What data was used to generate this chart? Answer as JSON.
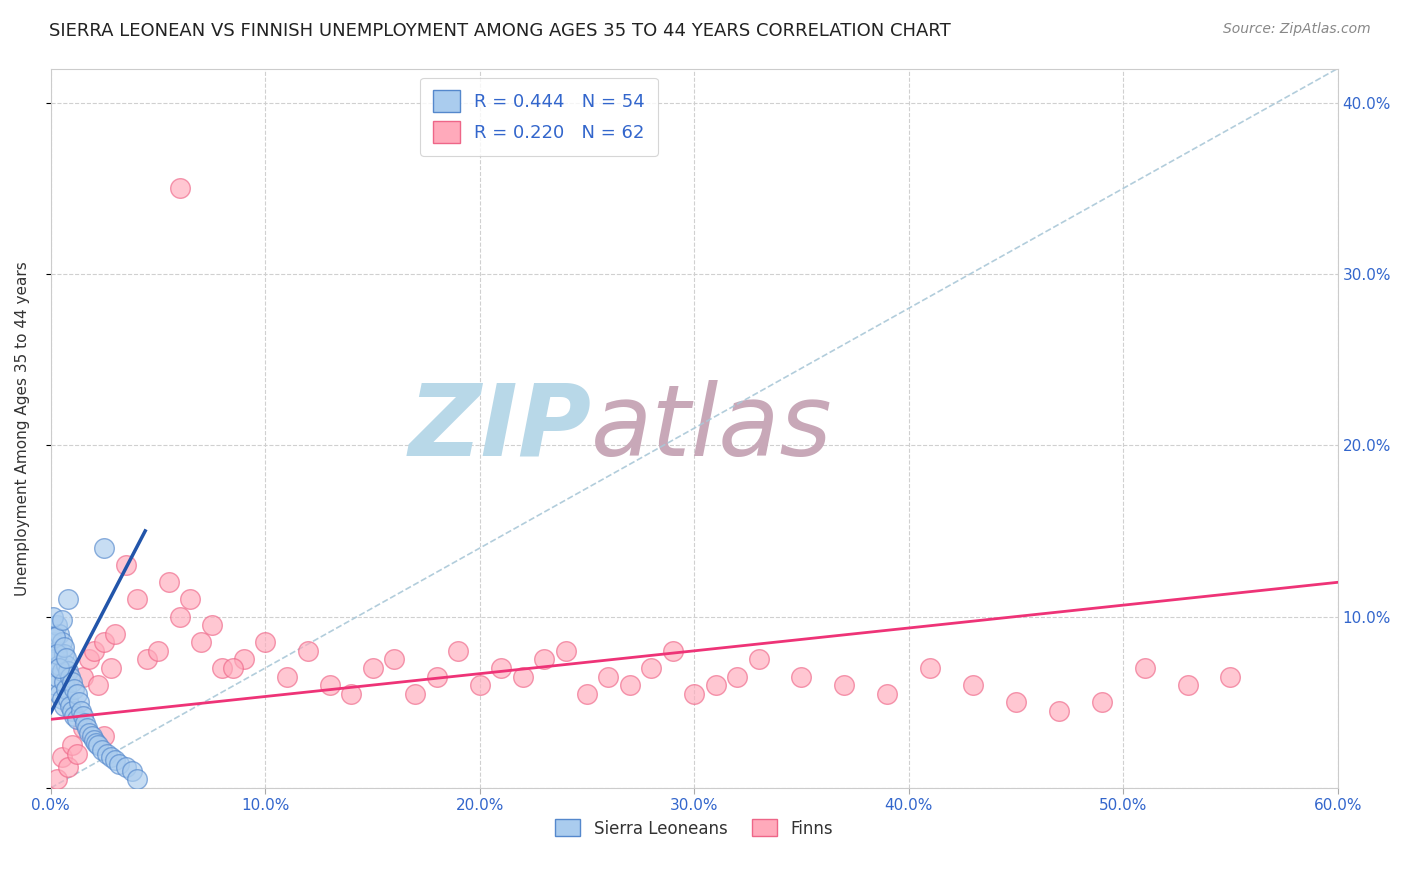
{
  "title": "SIERRA LEONEAN VS FINNISH UNEMPLOYMENT AMONG AGES 35 TO 44 YEARS CORRELATION CHART",
  "source": "Source: ZipAtlas.com",
  "ylabel": "Unemployment Among Ages 35 to 44 years",
  "xlim": [
    0.0,
    0.6
  ],
  "ylim": [
    0.0,
    0.42
  ],
  "xticks": [
    0.0,
    0.1,
    0.2,
    0.3,
    0.4,
    0.5,
    0.6
  ],
  "yticks": [
    0.0,
    0.1,
    0.2,
    0.3,
    0.4
  ],
  "background_color": "#ffffff",
  "grid_color": "#d0d0d0",
  "title_color": "#222222",
  "title_fontsize": 13,
  "watermark_zip": "ZIP",
  "watermark_atlas": "atlas",
  "watermark_color_zip": "#b8d8e8",
  "watermark_color_atlas": "#c8a8b8",
  "sl_color": "#5588cc",
  "sl_fill": "#aaccee",
  "fi_color": "#ee6688",
  "fi_fill": "#ffaabb",
  "sl_R": 0.444,
  "sl_N": 54,
  "fi_R": 0.22,
  "fi_N": 62,
  "legend_label_sl": "Sierra Leoneans",
  "legend_label_fi": "Finns",
  "sl_x": [
    0.001,
    0.002,
    0.002,
    0.003,
    0.003,
    0.003,
    0.004,
    0.004,
    0.004,
    0.005,
    0.005,
    0.005,
    0.006,
    0.006,
    0.006,
    0.007,
    0.007,
    0.008,
    0.008,
    0.009,
    0.009,
    0.01,
    0.01,
    0.011,
    0.011,
    0.012,
    0.012,
    0.013,
    0.014,
    0.015,
    0.016,
    0.017,
    0.018,
    0.019,
    0.02,
    0.021,
    0.022,
    0.024,
    0.026,
    0.028,
    0.03,
    0.032,
    0.035,
    0.038,
    0.001,
    0.002,
    0.003,
    0.004,
    0.005,
    0.006,
    0.007,
    0.008,
    0.025,
    0.04
  ],
  "sl_y": [
    0.085,
    0.075,
    0.06,
    0.095,
    0.08,
    0.065,
    0.09,
    0.072,
    0.055,
    0.085,
    0.068,
    0.052,
    0.078,
    0.062,
    0.048,
    0.072,
    0.058,
    0.068,
    0.052,
    0.065,
    0.048,
    0.062,
    0.045,
    0.058,
    0.042,
    0.055,
    0.04,
    0.05,
    0.045,
    0.042,
    0.038,
    0.035,
    0.032,
    0.03,
    0.028,
    0.026,
    0.025,
    0.022,
    0.02,
    0.018,
    0.016,
    0.014,
    0.012,
    0.01,
    0.1,
    0.088,
    0.078,
    0.07,
    0.098,
    0.082,
    0.076,
    0.11,
    0.14,
    0.005
  ],
  "fi_x": [
    0.003,
    0.005,
    0.008,
    0.01,
    0.012,
    0.015,
    0.018,
    0.02,
    0.022,
    0.025,
    0.028,
    0.03,
    0.035,
    0.04,
    0.045,
    0.05,
    0.055,
    0.06,
    0.065,
    0.07,
    0.075,
    0.08,
    0.09,
    0.1,
    0.11,
    0.12,
    0.13,
    0.14,
    0.15,
    0.16,
    0.17,
    0.18,
    0.19,
    0.2,
    0.21,
    0.22,
    0.23,
    0.24,
    0.25,
    0.26,
    0.27,
    0.28,
    0.29,
    0.3,
    0.31,
    0.32,
    0.33,
    0.35,
    0.37,
    0.39,
    0.41,
    0.43,
    0.45,
    0.47,
    0.49,
    0.51,
    0.53,
    0.55,
    0.015,
    0.025,
    0.06,
    0.085
  ],
  "fi_y": [
    0.005,
    0.018,
    0.012,
    0.025,
    0.02,
    0.065,
    0.075,
    0.08,
    0.06,
    0.085,
    0.07,
    0.09,
    0.13,
    0.11,
    0.075,
    0.08,
    0.12,
    0.1,
    0.11,
    0.085,
    0.095,
    0.07,
    0.075,
    0.085,
    0.065,
    0.08,
    0.06,
    0.055,
    0.07,
    0.075,
    0.055,
    0.065,
    0.08,
    0.06,
    0.07,
    0.065,
    0.075,
    0.08,
    0.055,
    0.065,
    0.06,
    0.07,
    0.08,
    0.055,
    0.06,
    0.065,
    0.075,
    0.065,
    0.06,
    0.055,
    0.07,
    0.06,
    0.05,
    0.045,
    0.05,
    0.07,
    0.06,
    0.065,
    0.035,
    0.03,
    0.35,
    0.07
  ],
  "sl_line": [
    [
      0.0,
      0.044
    ],
    [
      0.044,
      0.15
    ]
  ],
  "fi_line": [
    [
      0.0,
      0.6
    ],
    [
      0.04,
      0.12
    ]
  ],
  "diag_line": [
    [
      0.0,
      0.6
    ],
    [
      0.0,
      0.42
    ]
  ]
}
